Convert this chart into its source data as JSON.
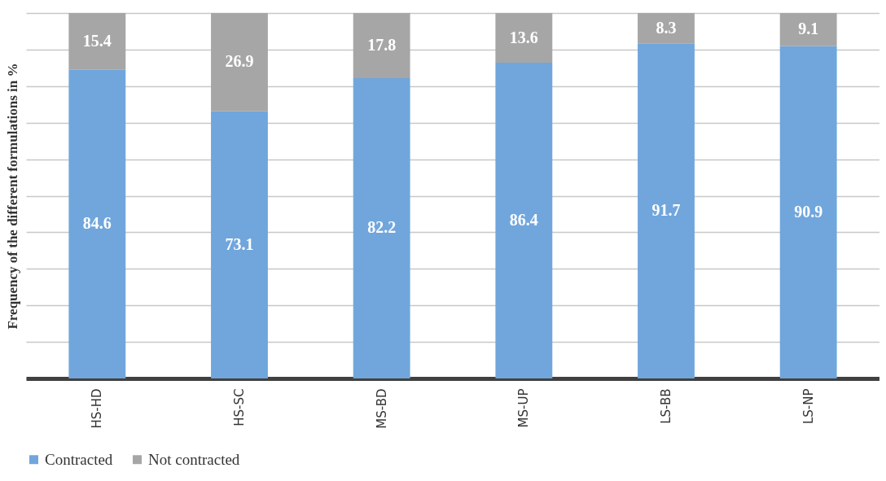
{
  "chart_data": {
    "type": "bar",
    "ylabel": "Frequency of the different formulations in %",
    "categories": [
      "HS-HD",
      "HS-SC",
      "MS-BD",
      "MS-UP",
      "LS-BB",
      "LS-NP"
    ],
    "series": [
      {
        "name": "Contracted",
        "color": "#70a6dc",
        "values": [
          84.6,
          73.1,
          82.2,
          86.4,
          91.7,
          90.9
        ]
      },
      {
        "name": "Not contracted",
        "color": "#a6a6a6",
        "values": [
          15.4,
          26.9,
          17.8,
          13.6,
          8.3,
          9.1
        ]
      }
    ],
    "stacked": true,
    "data_labels": true,
    "ylim": [
      0,
      100
    ],
    "yticks": [
      {
        "value": 0,
        "label": null
      },
      {
        "value": 10,
        "label": null
      },
      {
        "value": 20,
        "label": null
      },
      {
        "value": 30,
        "label": null
      },
      {
        "value": 40,
        "label": null
      },
      {
        "value": 50,
        "label": null
      },
      {
        "value": 60,
        "label": null
      },
      {
        "value": 70,
        "label": null
      },
      {
        "value": 80,
        "label": null
      },
      {
        "value": 90,
        "label": null
      },
      {
        "value": 100,
        "label": null
      }
    ],
    "tick_labels": "x",
    "grid": "y",
    "legend": "bottom"
  }
}
